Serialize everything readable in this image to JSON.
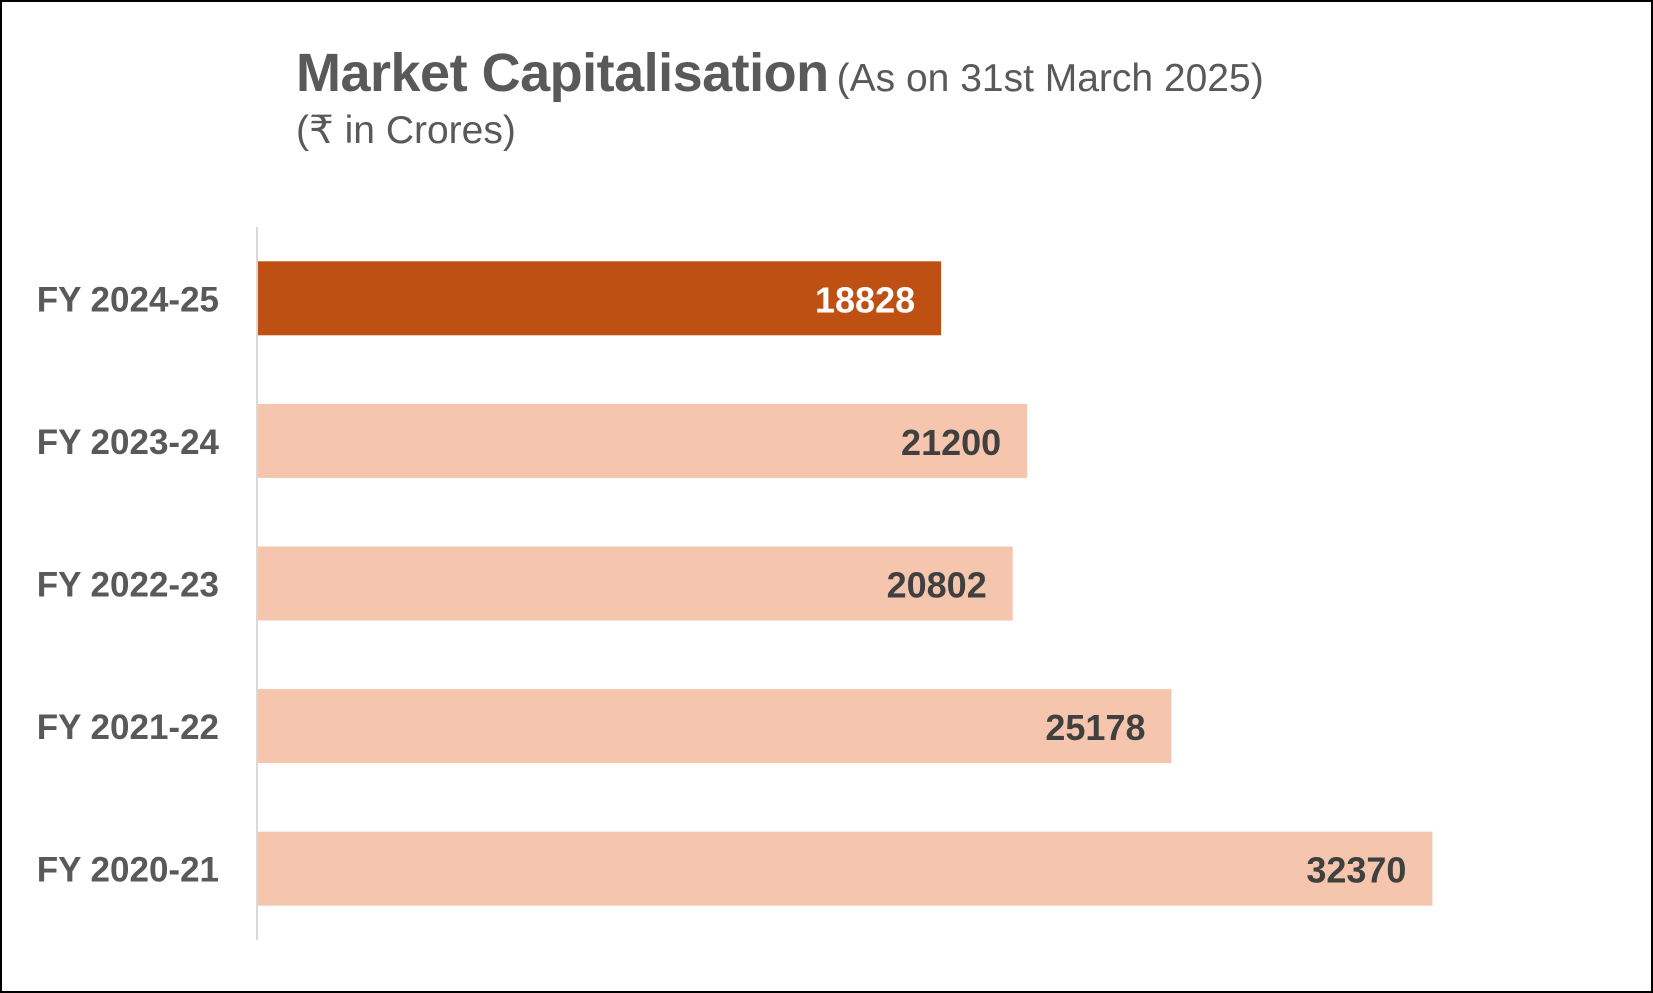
{
  "chart_data": {
    "type": "bar",
    "orientation": "horizontal",
    "title": "Market Capitalisation",
    "title_note": "(As on 31st March 2025)",
    "subtitle": "(₹ in Crores)",
    "categories": [
      "FY 2024-25",
      "FY 2023-24",
      "FY 2022-23",
      "FY 2021-22",
      "FY 2020-21"
    ],
    "values": [
      18828,
      21200,
      20802,
      25178,
      32370
    ],
    "data_labels": [
      "18828",
      "21200",
      "20802",
      "25178",
      "32370"
    ],
    "xlim": [
      0,
      35500
    ],
    "grid": false,
    "legend": "none",
    "highlight_index": 0
  },
  "colors": {
    "highlight_bar": "#C0504D",
    "highlight_bar_actual": "#BF5014",
    "bar": "#F5C6AD",
    "highlight_label": "#FFFFFF",
    "label": "#404040",
    "category_label": "#595959",
    "axis": "#D9D9D9",
    "title": "#595959"
  }
}
